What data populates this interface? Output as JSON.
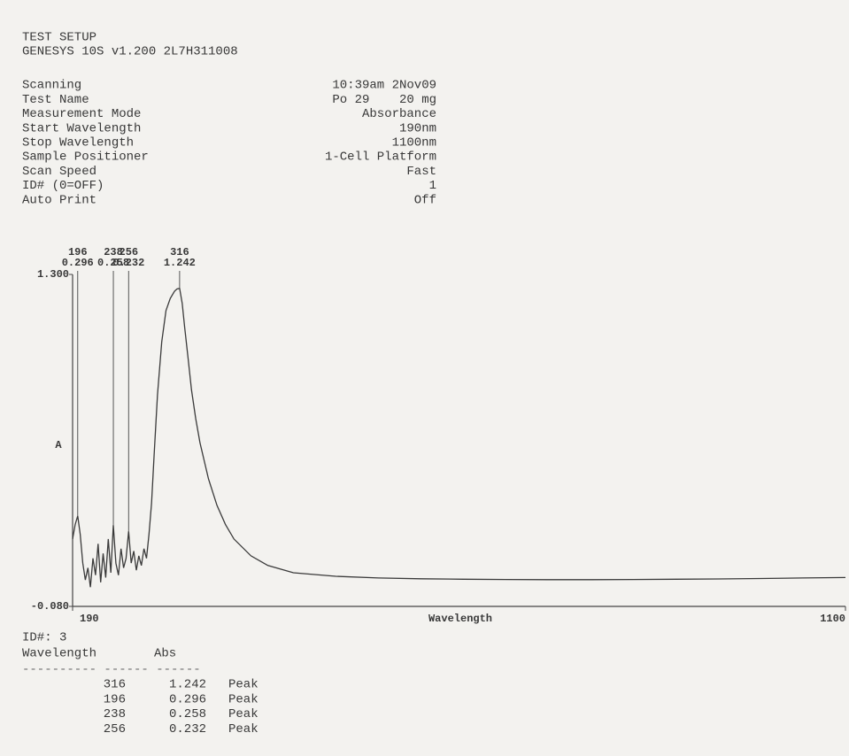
{
  "header": {
    "title": "TEST SETUP",
    "instrument": "GENESYS 10S v1.200 2L7H311008"
  },
  "setup": [
    {
      "label": "Scanning",
      "value": "10:39am 2Nov09"
    },
    {
      "label": "Test Name",
      "value": "Po 29    20 mg"
    },
    {
      "label": "Measurement Mode",
      "value": "Absorbance"
    },
    {
      "label": "Start Wavelength",
      "value": "190nm"
    },
    {
      "label": "Stop Wavelength",
      "value": "1100nm"
    },
    {
      "label": "Sample Positioner",
      "value": "1-Cell Platform"
    },
    {
      "label": "Scan Speed",
      "value": "Fast"
    },
    {
      "label": "ID# (0=OFF)",
      "value": "1"
    },
    {
      "label": "Auto Print",
      "value": "Off"
    }
  ],
  "chart_data": {
    "type": "line",
    "xlabel": "Wavelength",
    "ylabel": "A",
    "x": [
      190,
      193,
      196,
      199,
      202,
      205,
      208,
      211,
      214,
      217,
      220,
      223,
      226,
      229,
      232,
      235,
      238,
      241,
      244,
      247,
      250,
      253,
      256,
      259,
      262,
      265,
      268,
      271,
      274,
      277,
      280,
      283,
      286,
      290,
      295,
      300,
      305,
      310,
      313,
      316,
      319,
      322,
      326,
      330,
      335,
      340,
      350,
      360,
      370,
      380,
      400,
      420,
      450,
      500,
      550,
      600,
      650,
      700,
      750,
      800,
      850,
      900,
      950,
      1000,
      1050,
      1100
    ],
    "series": [
      {
        "color": "#3a3a3a",
        "values": [
          0.2,
          0.26,
          0.296,
          0.22,
          0.1,
          0.03,
          0.08,
          0.0,
          0.12,
          0.05,
          0.18,
          0.02,
          0.14,
          0.04,
          0.2,
          0.06,
          0.258,
          0.1,
          0.05,
          0.16,
          0.08,
          0.12,
          0.232,
          0.1,
          0.15,
          0.07,
          0.13,
          0.09,
          0.16,
          0.12,
          0.22,
          0.35,
          0.55,
          0.8,
          1.02,
          1.15,
          1.2,
          1.23,
          1.24,
          1.242,
          1.18,
          1.08,
          0.95,
          0.82,
          0.7,
          0.6,
          0.45,
          0.34,
          0.26,
          0.2,
          0.13,
          0.09,
          0.06,
          0.045,
          0.038,
          0.035,
          0.033,
          0.032,
          0.031,
          0.031,
          0.032,
          0.033,
          0.034,
          0.036,
          0.038,
          0.04
        ]
      }
    ],
    "peaks": [
      {
        "wavelength": 196,
        "abs": 0.296
      },
      {
        "wavelength": 238,
        "abs": 0.258
      },
      {
        "wavelength": 256,
        "abs": 0.232
      },
      {
        "wavelength": 316,
        "abs": 1.242
      }
    ],
    "xlim": [
      190,
      1100
    ],
    "xticks": [
      190,
      1100
    ],
    "ylim": [
      -0.08,
      1.3
    ],
    "yticks": [
      {
        "value": -0.08,
        "label": "-0.080"
      },
      {
        "value": 1.3,
        "label": "1.300"
      }
    ]
  },
  "table": {
    "id": "ID#: 3",
    "columns": [
      "Wavelength",
      "Abs"
    ],
    "rows": [
      [
        316,
        1.242,
        "Peak"
      ],
      [
        196,
        0.296,
        "Peak"
      ],
      [
        238,
        0.258,
        "Peak"
      ],
      [
        256,
        0.232,
        "Peak"
      ]
    ]
  }
}
